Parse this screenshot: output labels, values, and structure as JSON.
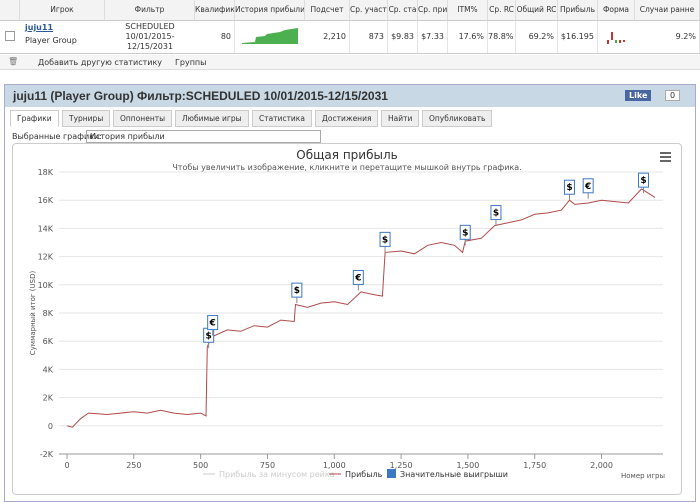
{
  "table": {
    "headers": [
      "Игрок",
      "Фильтр",
      "Квалифик",
      "История прибыли",
      "Подсчет",
      "Ср. участни",
      "Ср. ста",
      "Ср. при",
      "ITM%",
      "Ср. RC",
      "Общий RC",
      "Прибыль",
      "Форма",
      "Случаи ранне"
    ],
    "row": {
      "player": "juju11",
      "group": "Player Group",
      "filter": [
        "SCHEDULED",
        "10/01/2015-",
        "12/15/2031"
      ],
      "cells": [
        "80",
        "2,210",
        "873",
        "$9.83",
        "$7.33",
        "17.6%",
        "78.8%",
        "69.2%",
        "$16.195",
        "9.2%"
      ]
    }
  },
  "toolbar": {
    "add": "Добавить другую статистику",
    "groups": "Группы"
  },
  "panel": {
    "title": "juju11 (Player Group) Фильтр:SCHEDULED 10/01/2015-12/15/2031",
    "like": "Like",
    "like_count": "0",
    "tabs": [
      "Графики",
      "Турниры",
      "Оппоненты",
      "Любимые игры",
      "Статистика",
      "Достижения",
      "Найти",
      "Опубликовать"
    ],
    "select_label": "Выбранные графики:",
    "select_value": "История прибыли"
  },
  "chart_data": {
    "type": "line",
    "title": "Общая прибыль",
    "subtitle": "Чтобы увеличить изображение, кликните и перетащите мышкой внутрь графика.",
    "y_label": "Суммарный итог (USD)",
    "x_label": "Номер игры",
    "x": [
      0,
      20,
      50,
      80,
      150,
      200,
      250,
      300,
      350,
      400,
      450,
      500,
      520,
      525,
      540,
      600,
      650,
      700,
      750,
      800,
      850,
      855,
      900,
      950,
      1000,
      1050,
      1100,
      1150,
      1180,
      1190,
      1250,
      1300,
      1350,
      1400,
      1450,
      1480,
      1490,
      1550,
      1600,
      1650,
      1700,
      1750,
      1800,
      1850,
      1880,
      1900,
      1950,
      2000,
      2100,
      2150,
      2200
    ],
    "series": [
      {
        "name": "Прибыль",
        "color": "#b04a4a",
        "values": [
          0,
          -100,
          500,
          900,
          800,
          900,
          1000,
          900,
          1100,
          900,
          800,
          900,
          700,
          5600,
          6300,
          6800,
          6700,
          7100,
          7000,
          7500,
          7400,
          8600,
          8400,
          8700,
          8800,
          8600,
          9500,
          9300,
          9200,
          12300,
          12400,
          12200,
          12800,
          13000,
          12800,
          12300,
          13100,
          13300,
          14200,
          14400,
          14600,
          15000,
          15100,
          15300,
          16000,
          15700,
          15800,
          16000,
          15800,
          16800,
          16200
        ]
      }
    ],
    "hidden_series": {
      "name": "Прибыль за минусом рейка",
      "color": "#cccccc"
    },
    "markers": {
      "name": "Значительные выигрыши",
      "color": "#3c78c3",
      "points": [
        {
          "x": 530,
          "y": 5500,
          "label": "$"
        },
        {
          "x": 545,
          "y": 6400,
          "label": "€"
        },
        {
          "x": 860,
          "y": 8700,
          "label": "$"
        },
        {
          "x": 1090,
          "y": 9600,
          "label": "€"
        },
        {
          "x": 1190,
          "y": 12300,
          "label": "$"
        },
        {
          "x": 1490,
          "y": 12800,
          "label": "$"
        },
        {
          "x": 1605,
          "y": 14200,
          "label": "$"
        },
        {
          "x": 1880,
          "y": 16000,
          "label": "$"
        },
        {
          "x": 1950,
          "y": 16100,
          "label": "€"
        },
        {
          "x": 2157,
          "y": 16500,
          "label": "$"
        }
      ]
    },
    "xlim": [
      -30,
      2230
    ],
    "ylim": [
      -2000,
      18000
    ],
    "xticks": [
      0,
      250,
      500,
      750,
      {
        "value": 1000,
        "label": "1,000"
      },
      {
        "value": 1250,
        "label": "1,250"
      },
      {
        "value": 1500,
        "label": "1,500"
      },
      {
        "value": 1750,
        "label": "1,750"
      },
      {
        "value": 2000,
        "label": "2,000"
      }
    ],
    "yticks": [
      {
        "value": -2000,
        "label": "-2K"
      },
      0,
      {
        "value": 2000,
        "label": "2K"
      },
      {
        "value": 4000,
        "label": "4K"
      },
      {
        "value": 6000,
        "label": "6K"
      },
      {
        "value": 8000,
        "label": "8K"
      },
      {
        "value": 10000,
        "label": "10K"
      },
      {
        "value": 12000,
        "label": "12K"
      },
      {
        "value": 14000,
        "label": "14K"
      },
      {
        "value": 16000,
        "label": "16K"
      },
      {
        "value": 18000,
        "label": "18K"
      }
    ],
    "grid": true
  }
}
